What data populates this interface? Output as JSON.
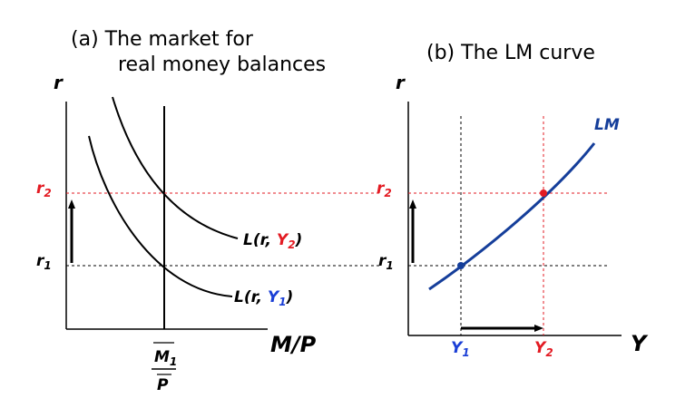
{
  "panel_a": {
    "title_line1": "(a)  The market for",
    "title_line2": "real money balances",
    "y_axis_label": "r",
    "x_axis_label": "M/P",
    "r2_label": "r",
    "r2_sub": "2",
    "r1_label": "r",
    "r1_sub": "1",
    "curve_y2_prefix": "L(r, ",
    "curve_y2_var": "Y",
    "curve_y2_sub": "2",
    "curve_y2_suffix": ")",
    "curve_y1_prefix": "L(r, ",
    "curve_y1_var": "Y",
    "curve_y1_sub": "1",
    "curve_y1_suffix": ")",
    "supply_num": "M",
    "supply_num_sub": "1",
    "supply_den": "P"
  },
  "panel_b": {
    "title": "(b)  The LM curve",
    "y_axis_label": "r",
    "x_axis_label": "Y",
    "curve_label": "LM",
    "r2_label": "r",
    "r2_sub": "2",
    "r1_label": "r",
    "r1_sub": "1",
    "y1_label": "Y",
    "y1_sub": "1",
    "y2_label": "Y",
    "y2_sub": "2"
  },
  "colors": {
    "red": "#e31b23",
    "blue": "#1b3fd6",
    "lm_curve": "#153e9a",
    "black": "#000000"
  }
}
